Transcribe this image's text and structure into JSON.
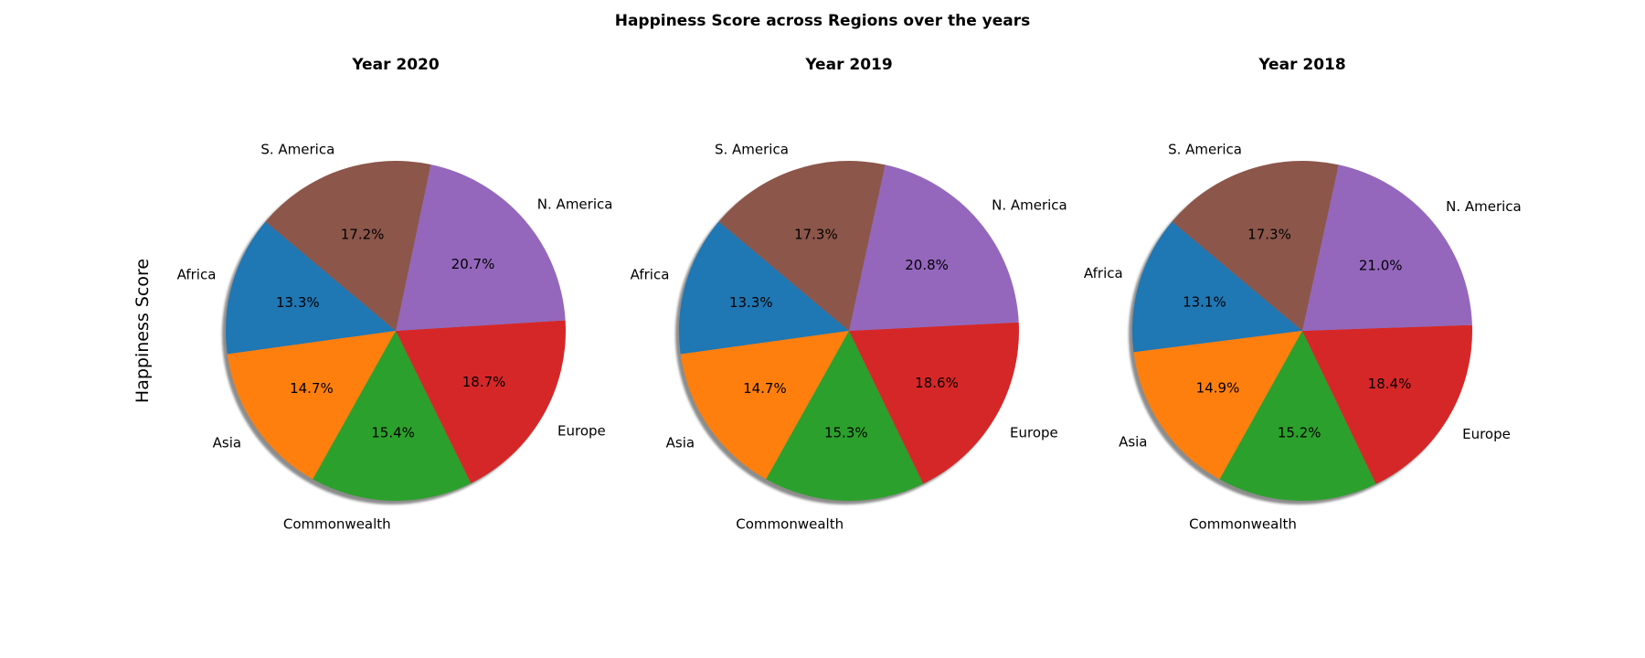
{
  "figure": {
    "title": "Happiness Score across Regions over the years",
    "ylabel": "Happiness Score"
  },
  "colors": {
    "Africa": "#1f77b4",
    "Asia": "#ff7f0e",
    "Commonwealth": "#2ca02c",
    "Europe": "#d62728",
    "N. America": "#9467bd",
    "S. America": "#8c564b"
  },
  "chart_data": [
    {
      "type": "pie",
      "title": "Year 2020",
      "labels": [
        "Africa",
        "Asia",
        "Commonwealth",
        "Europe",
        "N. America",
        "S. America"
      ],
      "values": [
        13.3,
        14.7,
        15.4,
        18.7,
        20.7,
        17.2
      ],
      "value_labels": [
        "13.3%",
        "14.7%",
        "15.4%",
        "18.7%",
        "20.7%",
        "17.2%"
      ],
      "shadow": true
    },
    {
      "type": "pie",
      "title": "Year 2019",
      "labels": [
        "Africa",
        "Asia",
        "Commonwealth",
        "Europe",
        "N. America",
        "S. America"
      ],
      "values": [
        13.3,
        14.7,
        15.3,
        18.6,
        20.8,
        17.3
      ],
      "value_labels": [
        "13.3%",
        "14.7%",
        "15.3%",
        "18.6%",
        "20.8%",
        "17.3%"
      ],
      "shadow": true
    },
    {
      "type": "pie",
      "title": "Year 2018",
      "labels": [
        "Africa",
        "Asia",
        "Commonwealth",
        "Europe",
        "N. America",
        "S. America"
      ],
      "values": [
        13.1,
        14.9,
        15.2,
        18.4,
        21.0,
        17.3
      ],
      "value_labels": [
        "13.1%",
        "14.9%",
        "15.2%",
        "18.4%",
        "21.0%",
        "17.3%"
      ],
      "shadow": true
    }
  ]
}
